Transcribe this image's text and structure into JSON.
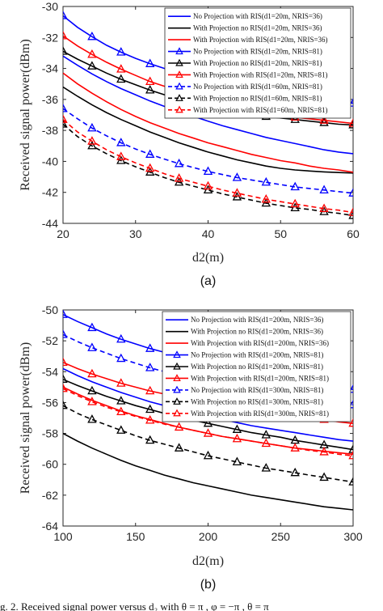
{
  "chart_data": [
    {
      "type": "line",
      "caption": "(a)",
      "xlabel": "d2(m)",
      "ylabel": "Received signal power(dBm)",
      "xlim": [
        20,
        60
      ],
      "ylim": [
        -44,
        -30
      ],
      "xticks": [
        20,
        30,
        40,
        50,
        60
      ],
      "yticks": [
        -30,
        -32,
        -34,
        -36,
        -38,
        -40,
        -42,
        -44
      ],
      "legend_position": "top-right",
      "x": [
        20,
        22,
        24,
        26,
        28,
        30,
        32,
        34,
        36,
        38,
        40,
        42,
        44,
        46,
        48,
        50,
        52,
        54,
        56,
        58,
        60
      ],
      "series": [
        {
          "name": "No Projection with RIS(d1=20m, NRIS=36)",
          "color": "#0000ff",
          "dash": false,
          "marker": false,
          "values": [
            -33.2,
            -33.8,
            -34.35,
            -34.85,
            -35.3,
            -35.7,
            -36.1,
            -36.45,
            -36.8,
            -37.1,
            -37.4,
            -37.7,
            -37.95,
            -38.2,
            -38.45,
            -38.65,
            -38.85,
            -39.05,
            -39.25,
            -39.4,
            -39.5
          ]
        },
        {
          "name": "With Projection no RIS(d1=20m, NRIS=36)",
          "color": "#000000",
          "dash": false,
          "marker": false,
          "values": [
            -35.2,
            -35.8,
            -36.35,
            -36.85,
            -37.3,
            -37.7,
            -38.1,
            -38.45,
            -38.8,
            -39.1,
            -39.4,
            -39.65,
            -39.9,
            -40.1,
            -40.3,
            -40.45,
            -40.55,
            -40.62,
            -40.68,
            -40.72,
            -40.75
          ]
        },
        {
          "name": "With Projection with RIS(d1=20m, NRIS=36)",
          "color": "#ff0000",
          "dash": false,
          "marker": false,
          "values": [
            -34.3,
            -35.0,
            -35.6,
            -36.15,
            -36.65,
            -37.1,
            -37.5,
            -37.85,
            -38.2,
            -38.5,
            -38.8,
            -39.05,
            -39.3,
            -39.55,
            -39.75,
            -39.95,
            -40.1,
            -40.3,
            -40.45,
            -40.55,
            -40.7
          ]
        },
        {
          "name": "No Projection with RIS(d1=20m, NRIS=81)",
          "color": "#0000ff",
          "dash": false,
          "marker": true,
          "values": [
            -30.6,
            -31.35,
            -31.95,
            -32.5,
            -32.95,
            -33.35,
            -33.7,
            -34.0,
            -34.3,
            -34.55,
            -34.75,
            -34.95,
            -35.15,
            -35.3,
            -35.45,
            -35.6,
            -35.75,
            -35.85,
            -35.95,
            -36.1,
            -36.25
          ]
        },
        {
          "name": "With Projection no RIS(d1=20m, NRIS=81)",
          "color": "#000000",
          "dash": false,
          "marker": true,
          "values": [
            -32.9,
            -33.4,
            -33.85,
            -34.3,
            -34.7,
            -35.05,
            -35.4,
            -35.7,
            -36.0,
            -36.25,
            -36.5,
            -36.7,
            -36.85,
            -37.0,
            -37.1,
            -37.2,
            -37.3,
            -37.4,
            -37.5,
            -37.6,
            -37.65
          ]
        },
        {
          "name": "With Projection with RIS(d1=20m, NRIS=81)",
          "color": "#ff0000",
          "dash": false,
          "marker": true,
          "values": [
            -31.9,
            -32.55,
            -33.1,
            -33.6,
            -34.05,
            -34.45,
            -34.85,
            -35.15,
            -35.45,
            -35.75,
            -36.0,
            -36.25,
            -36.45,
            -36.65,
            -36.85,
            -37.0,
            -37.15,
            -37.25,
            -37.35,
            -37.45,
            -37.55
          ]
        },
        {
          "name": "No Projection with RIS(d1=60m, NRIS=81)",
          "color": "#0000ff",
          "dash": true,
          "marker": true,
          "values": [
            -36.6,
            -37.25,
            -37.85,
            -38.35,
            -38.8,
            -39.2,
            -39.55,
            -39.85,
            -40.15,
            -40.4,
            -40.65,
            -40.85,
            -41.05,
            -41.2,
            -41.35,
            -41.5,
            -41.65,
            -41.75,
            -41.85,
            -41.95,
            -42.05
          ]
        },
        {
          "name": "With Projection no RIS(d1=60m, NRIS=81)",
          "color": "#000000",
          "dash": true,
          "marker": true,
          "values": [
            -37.6,
            -38.4,
            -39.0,
            -39.5,
            -39.95,
            -40.35,
            -40.7,
            -41.05,
            -41.35,
            -41.6,
            -41.85,
            -42.1,
            -42.3,
            -42.5,
            -42.7,
            -42.85,
            -43.0,
            -43.1,
            -43.25,
            -43.35,
            -43.5
          ]
        },
        {
          "name": "With Projection with RIS(d1=60m, NRIS=81)",
          "color": "#ff0000",
          "dash": true,
          "marker": true,
          "values": [
            -37.3,
            -38.1,
            -38.7,
            -39.25,
            -39.7,
            -40.1,
            -40.45,
            -40.8,
            -41.1,
            -41.35,
            -41.6,
            -41.85,
            -42.05,
            -42.25,
            -42.45,
            -42.6,
            -42.75,
            -42.9,
            -43.05,
            -43.15,
            -43.3
          ]
        }
      ]
    },
    {
      "type": "line",
      "caption": "(b)",
      "xlabel": "d2(m)",
      "ylabel": "Received signal power(dBm)",
      "xlim": [
        100,
        300
      ],
      "ylim": [
        -64,
        -50
      ],
      "xticks": [
        100,
        150,
        200,
        250,
        300
      ],
      "yticks": [
        -50,
        -52,
        -54,
        -56,
        -58,
        -60,
        -62,
        -64
      ],
      "legend_position": "top-right",
      "x": [
        100,
        110,
        120,
        130,
        140,
        150,
        160,
        170,
        180,
        190,
        200,
        210,
        220,
        230,
        240,
        250,
        260,
        270,
        280,
        290,
        300
      ],
      "series": [
        {
          "name": "No Projection with RIS(d1=200m, NRIS=36)",
          "color": "#0000ff",
          "dash": false,
          "marker": false,
          "values": [
            -53.8,
            -54.25,
            -54.65,
            -55.0,
            -55.35,
            -55.65,
            -55.95,
            -56.2,
            -56.45,
            -56.7,
            -56.9,
            -57.1,
            -57.3,
            -57.5,
            -57.65,
            -57.8,
            -57.95,
            -58.1,
            -58.25,
            -58.4,
            -58.5
          ]
        },
        {
          "name": "With Projection no RIS(d1=200m, NRIS=36)",
          "color": "#000000",
          "dash": false,
          "marker": false,
          "values": [
            -58.0,
            -58.5,
            -58.95,
            -59.35,
            -59.75,
            -60.1,
            -60.4,
            -60.7,
            -60.95,
            -61.2,
            -61.4,
            -61.6,
            -61.8,
            -62.0,
            -62.15,
            -62.3,
            -62.45,
            -62.6,
            -62.75,
            -62.85,
            -62.95
          ]
        },
        {
          "name": "With Projection with RIS(d1=200m, NRIS=36)",
          "color": "#ff0000",
          "dash": false,
          "marker": false,
          "values": [
            -55.0,
            -55.45,
            -55.85,
            -56.2,
            -56.55,
            -56.85,
            -57.1,
            -57.35,
            -57.6,
            -57.8,
            -58.0,
            -58.2,
            -58.35,
            -58.5,
            -58.65,
            -58.8,
            -58.95,
            -59.05,
            -59.15,
            -59.25,
            -59.35
          ]
        },
        {
          "name": "No Projection with RIS(d1=200m, NRIS=81)",
          "color": "#0000ff",
          "dash": false,
          "marker": true,
          "values": [
            -50.3,
            -50.75,
            -51.15,
            -51.55,
            -51.9,
            -52.2,
            -52.5,
            -52.75,
            -53.0,
            -53.25,
            -53.45,
            -53.65,
            -53.85,
            -54.05,
            -54.2,
            -54.4,
            -54.55,
            -54.7,
            -54.85,
            -55.0,
            -55.15
          ]
        },
        {
          "name": "With Projection no RIS(d1=200m, NRIS=81)",
          "color": "#000000",
          "dash": false,
          "marker": true,
          "values": [
            -54.5,
            -54.9,
            -55.25,
            -55.6,
            -55.9,
            -56.2,
            -56.45,
            -56.7,
            -56.95,
            -57.15,
            -57.35,
            -57.55,
            -57.75,
            -57.95,
            -58.1,
            -58.25,
            -58.45,
            -58.6,
            -58.75,
            -58.9,
            -59.05
          ]
        },
        {
          "name": "With Projection with RIS(d1=200m, NRIS=81)",
          "color": "#ff0000",
          "dash": false,
          "marker": true,
          "values": [
            -53.4,
            -53.8,
            -54.15,
            -54.45,
            -54.75,
            -55.0,
            -55.25,
            -55.45,
            -55.65,
            -55.85,
            -56.0,
            -56.15,
            -56.3,
            -56.45,
            -56.6,
            -56.75,
            -56.85,
            -57.0,
            -57.1,
            -57.25,
            -57.35
          ]
        },
        {
          "name": "No Projection with RIS(d1=300m, NRIS=81)",
          "color": "#0000ff",
          "dash": true,
          "marker": true,
          "values": [
            -51.6,
            -52.05,
            -52.45,
            -52.8,
            -53.15,
            -53.45,
            -53.75,
            -54.0,
            -54.25,
            -54.45,
            -54.65,
            -54.85,
            -55.05,
            -55.2,
            -55.35,
            -55.5,
            -55.65,
            -55.8,
            -55.9,
            -56.05,
            -56.15
          ]
        },
        {
          "name": "With Projection no RIS(d1=300m, NRIS=81)",
          "color": "#000000",
          "dash": true,
          "marker": true,
          "values": [
            -56.2,
            -56.7,
            -57.1,
            -57.45,
            -57.8,
            -58.15,
            -58.45,
            -58.7,
            -58.95,
            -59.2,
            -59.45,
            -59.65,
            -59.85,
            -60.05,
            -60.25,
            -60.4,
            -60.55,
            -60.7,
            -60.85,
            -61.0,
            -61.15
          ]
        },
        {
          "name": "With Projection with RIS(d1=300m, NRIS=81)",
          "color": "#ff0000",
          "dash": true,
          "marker": true,
          "values": [
            -55.1,
            -55.55,
            -55.95,
            -56.3,
            -56.6,
            -56.9,
            -57.15,
            -57.4,
            -57.6,
            -57.8,
            -58.0,
            -58.2,
            -58.35,
            -58.5,
            -58.65,
            -58.8,
            -58.95,
            -59.1,
            -59.2,
            -59.35,
            -59.45
          ]
        }
      ]
    }
  ],
  "caption_fragment": "g. 2. Received signal power versus d₂ with θ = π , φ = −π , θ = π"
}
